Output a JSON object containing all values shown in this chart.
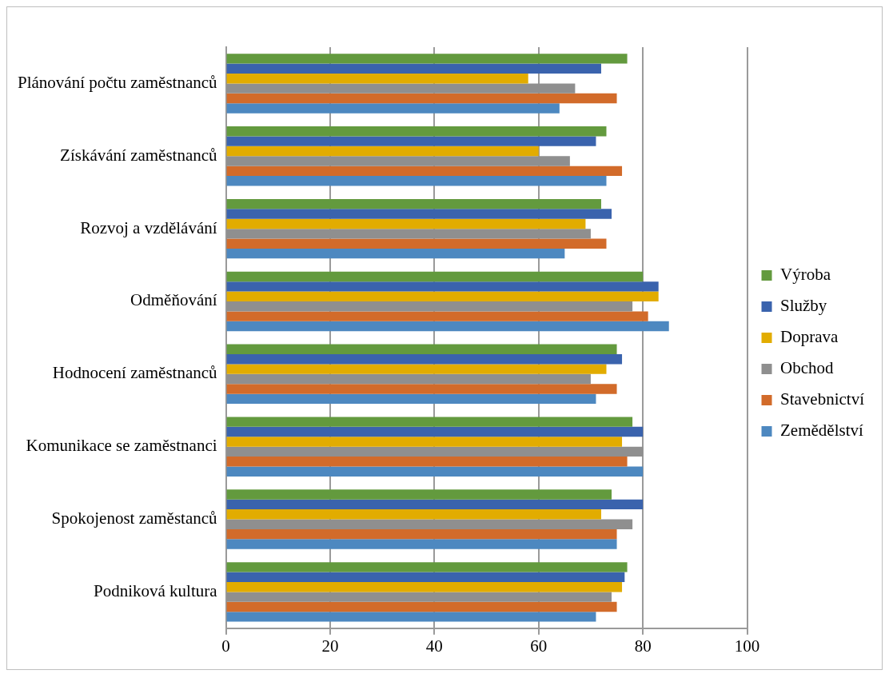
{
  "chart_data": {
    "type": "bar",
    "orientation": "horizontal",
    "categories": [
      "Plánování počtu zaměstnanců",
      "Získávání zaměstnanců",
      "Rozvoj a vzdělávání",
      "Odměňování",
      "Hodnocení zaměstnanců",
      "Komunikace se zaměstnanci",
      "Spokojenost zaměstanců",
      "Podniková kultura"
    ],
    "series": [
      {
        "name": "Výroba",
        "color": "#639a3e",
        "values": [
          77,
          73,
          72,
          80,
          75,
          78,
          74,
          77
        ]
      },
      {
        "name": "Služby",
        "color": "#3a63ad",
        "values": [
          72,
          71,
          74,
          83,
          76,
          80,
          80,
          76.5
        ]
      },
      {
        "name": "Doprava",
        "color": "#e2ac00",
        "values": [
          58,
          60,
          69,
          83,
          73,
          76,
          72,
          76
        ]
      },
      {
        "name": "Obchod",
        "color": "#8f8f8f",
        "values": [
          67,
          66,
          70,
          78,
          70,
          80,
          78,
          74
        ]
      },
      {
        "name": "Stavebnictví",
        "color": "#d26b2a",
        "values": [
          75,
          76,
          73,
          81,
          75,
          77,
          75,
          75
        ]
      },
      {
        "name": "Zemědělství",
        "color": "#4d88c0",
        "values": [
          64,
          73,
          65,
          85,
          71,
          80,
          75,
          71
        ]
      }
    ],
    "xlim": [
      0,
      100
    ],
    "xticks": [
      0,
      20,
      40,
      60,
      80,
      100
    ],
    "grid": "x",
    "legend": "right"
  }
}
